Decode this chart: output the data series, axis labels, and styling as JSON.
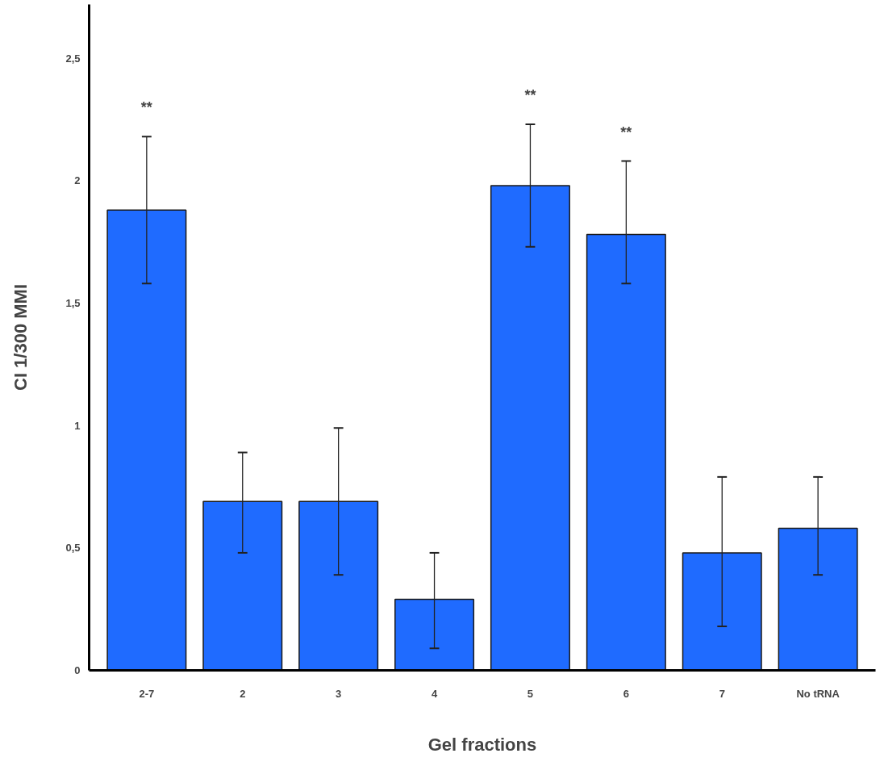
{
  "chart_data": {
    "type": "bar",
    "xlabel": "Gel fractions",
    "ylabel": "CI 1/300 MMI",
    "categories": [
      "2-7",
      "2",
      "3",
      "4",
      "5",
      "6",
      "7",
      "No tRNA"
    ],
    "values": [
      1.88,
      0.69,
      0.69,
      0.29,
      1.98,
      1.78,
      0.48,
      0.58
    ],
    "errors": [
      [
        1.58,
        2.18
      ],
      [
        0.48,
        0.89
      ],
      [
        0.39,
        0.99
      ],
      [
        0.09,
        0.48
      ],
      [
        1.73,
        2.23
      ],
      [
        1.58,
        2.08
      ],
      [
        0.18,
        0.79
      ],
      [
        0.39,
        0.79
      ]
    ],
    "color": "#1f6bff",
    "ylim": [
      0,
      2.72
    ],
    "yticks": [
      0,
      {
        "value": 0.5,
        "label": "0,5"
      },
      1,
      {
        "value": 1.5,
        "label": "1,5"
      },
      2,
      {
        "value": 2.5,
        "label": "2,5"
      }
    ],
    "annotations": [
      {
        "text": "**",
        "x": "2-7",
        "y": 2.18
      },
      {
        "text": "**",
        "x": "5",
        "y": 2.23
      },
      {
        "text": "**",
        "x": "6",
        "y": 2.08
      }
    ],
    "grid": false
  }
}
